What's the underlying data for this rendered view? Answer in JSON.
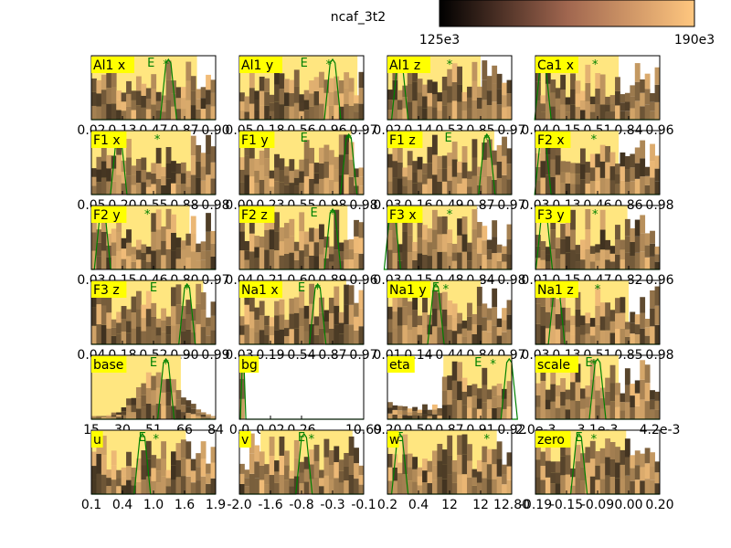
{
  "chart_data": {
    "type": "histogram-grid",
    "title": "ncaf_3t2",
    "colorbar": {
      "colormap": "copper",
      "min_label": "125e3",
      "max_label": "190e3",
      "start_color": "#000000",
      "end_color": "#ffc77f"
    },
    "colors": {
      "highlight_fill": "#ffe680",
      "label_bg": "#ffff00",
      "line": "#008000",
      "marker": "#008000"
    },
    "panels": [
      {
        "name": "Al1 x",
        "ticks": [
          "0.02",
          "0.13",
          "0.47",
          "0.87",
          "0.90"
        ],
        "band": [
          0.0,
          0.85
        ],
        "peak": 0.62,
        "marks": [
          0.48,
          0.6
        ]
      },
      {
        "name": "Al1 y",
        "ticks": [
          "0.05",
          "0.18",
          "0.56",
          "0.96",
          "0.97"
        ],
        "band": [
          0.0,
          0.95
        ],
        "peak": 0.75,
        "marks": [
          0.52,
          0.72
        ]
      },
      {
        "name": "Al1 z",
        "ticks": [
          "0.02",
          "0.14",
          "0.53",
          "0.85",
          "0.97"
        ],
        "band": [
          0.0,
          0.75
        ],
        "peak": 0.1,
        "marks": [
          0.1,
          0.5
        ]
      },
      {
        "name": "Ca1 x",
        "ticks": [
          "0.04",
          "0.15",
          "0.51",
          "0.84",
          "0.96"
        ],
        "band": [
          0.0,
          0.67
        ],
        "peak": 0.06,
        "marks": [
          0.06,
          0.48
        ]
      },
      {
        "name": "F1 x",
        "ticks": [
          "0.05",
          "0.20",
          "0.55",
          "0.88",
          "0.98"
        ],
        "band": [
          0.0,
          0.8
        ],
        "peak": 0.22,
        "marks": [
          0.24,
          0.53
        ]
      },
      {
        "name": "F1 y",
        "ticks": [
          "0.00",
          "0.23",
          "0.55",
          "0.98",
          "0.98"
        ],
        "band": [
          0.0,
          0.9
        ],
        "peak": 0.88,
        "marks": [
          0.52,
          0.88
        ]
      },
      {
        "name": "F1 z",
        "ticks": [
          "0.03",
          "0.16",
          "0.49",
          "0.87",
          "0.97"
        ],
        "band": [
          0.0,
          0.86
        ],
        "peak": 0.8,
        "marks": [
          0.49,
          0.8
        ]
      },
      {
        "name": "F2 x",
        "ticks": [
          "0.03",
          "0.13",
          "0.46",
          "0.86",
          "0.98"
        ],
        "band": [
          0.0,
          0.67
        ],
        "peak": 0.06,
        "marks": [
          0.06,
          0.47
        ]
      },
      {
        "name": "F2 y",
        "ticks": [
          "0.03",
          "0.15",
          "0.46",
          "0.80",
          "0.97"
        ],
        "band": [
          0.0,
          0.79
        ],
        "peak": 0.09,
        "marks": [
          0.09,
          0.45
        ]
      },
      {
        "name": "F2 z",
        "ticks": [
          "0.04",
          "0.21",
          "0.60",
          "0.89",
          "0.96"
        ],
        "band": [
          0.0,
          0.87
        ],
        "peak": 0.75,
        "marks": [
          0.6,
          0.75
        ]
      },
      {
        "name": "F3 x",
        "ticks": [
          "0.03",
          "0.15",
          "0.48",
          "0.84",
          "0.98"
        ],
        "band": [
          0.0,
          0.72
        ],
        "peak": 0.04,
        "marks": [
          0.04,
          0.5
        ]
      },
      {
        "name": "F3 y",
        "ticks": [
          "0.01",
          "0.15",
          "0.47",
          "0.82",
          "0.96"
        ],
        "band": [
          0.0,
          0.74
        ],
        "peak": 0.07,
        "marks": [
          0.07,
          0.48
        ]
      },
      {
        "name": "F3 z",
        "ticks": [
          "0.04",
          "0.18",
          "0.52",
          "0.90",
          "0.99"
        ],
        "band": [
          0.0,
          0.9
        ],
        "peak": 0.77,
        "marks": [
          0.5,
          0.77
        ]
      },
      {
        "name": "Na1 x",
        "ticks": [
          "0.03",
          "0.19",
          "0.54",
          "0.87",
          "0.97"
        ],
        "band": [
          0.0,
          0.86
        ],
        "peak": 0.63,
        "marks": [
          0.5,
          0.63
        ]
      },
      {
        "name": "Na1 y",
        "ticks": [
          "0.01",
          "0.14",
          "0.44",
          "0.84",
          "0.97"
        ],
        "band": [
          0.0,
          0.75
        ],
        "peak": 0.39,
        "marks": [
          0.39,
          0.47
        ]
      },
      {
        "name": "Na1 z",
        "ticks": [
          "0.03",
          "0.13",
          "0.51",
          "0.85",
          "0.98"
        ],
        "band": [
          0.0,
          0.75
        ],
        "peak": 0.17,
        "marks": [
          0.17,
          0.5
        ]
      },
      {
        "name": "base",
        "ticks": [
          "15",
          "30",
          "51",
          "66",
          "84"
        ],
        "band": [
          0.0,
          0.72
        ],
        "peak": 0.6,
        "marks": [
          0.5,
          0.6
        ]
      },
      {
        "name": "bg",
        "ticks": [
          "0.0",
          "0.02",
          "0.26",
          "",
          "10.69"
        ],
        "band": [
          0.0,
          0.04
        ],
        "peak": 0.03,
        "marks": [
          0.02,
          0.04
        ]
      },
      {
        "name": "eta",
        "ticks": [
          "0.20",
          "0.50",
          "0.87",
          "0.91",
          "0.92"
        ],
        "band": [
          0.45,
          1.0
        ],
        "peak": 0.98,
        "marks": [
          0.73,
          0.85
        ]
      },
      {
        "name": "scale",
        "ticks": [
          "2.0e-3",
          "3.1e-3",
          "4.2e-3"
        ],
        "band": [
          0.0,
          0.67
        ],
        "peak": 0.5,
        "marks": [
          0.43,
          0.47
        ]
      },
      {
        "name": "u",
        "ticks": [
          "0.1",
          "0.4",
          "1.0",
          "1.6",
          "1.9"
        ],
        "band": [
          0.0,
          0.76
        ],
        "peak": 0.41,
        "marks": [
          0.41,
          0.52
        ]
      },
      {
        "name": "v",
        "ticks": [
          "-2.0",
          "-1.6",
          "-0.8",
          "-0.3",
          "-0.1"
        ],
        "band": [
          0.17,
          0.91
        ],
        "peak": 0.52,
        "marks": [
          0.5,
          0.58
        ]
      },
      {
        "name": "w",
        "ticks": [
          "0.2",
          "0.4",
          "12",
          "12",
          "12.80"
        ],
        "band": [
          0.0,
          0.88
        ],
        "peak": 0.1,
        "marks": [
          0.1,
          0.8
        ]
      },
      {
        "name": "zero",
        "ticks": [
          "-0.19",
          "-0.15",
          "-0.09",
          "0.00",
          "0.20"
        ],
        "band": [
          0.0,
          0.73
        ],
        "peak": 0.35,
        "marks": [
          0.35,
          0.47
        ]
      }
    ]
  }
}
